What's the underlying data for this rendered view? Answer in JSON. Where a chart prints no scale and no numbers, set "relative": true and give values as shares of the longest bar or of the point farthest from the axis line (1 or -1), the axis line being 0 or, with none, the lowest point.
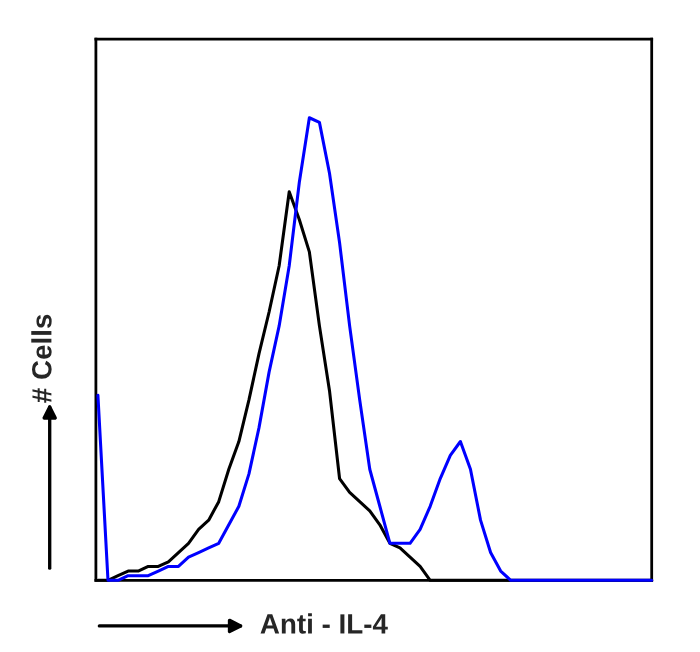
{
  "chart_data": {
    "type": "line",
    "relative": true,
    "xlabel": "Anti - IL-4",
    "ylabel": "# Cells",
    "grid": false,
    "legend": false,
    "marker": "none",
    "line_style": "solid",
    "categories": [
      null,
      null,
      null,
      null,
      null,
      null,
      null,
      null,
      null,
      null,
      null,
      null,
      null,
      null,
      null,
      null,
      null,
      null,
      null,
      null,
      null,
      null,
      null,
      null,
      null,
      null,
      null,
      null,
      null,
      null,
      null,
      null,
      null,
      null,
      null,
      null,
      null,
      null,
      null,
      null,
      null,
      null,
      null,
      null,
      null,
      null,
      null,
      null,
      null,
      null,
      null,
      null,
      null,
      null,
      null,
      null
    ],
    "series": [
      {
        "color": "#000000",
        "values": [
          0.0,
          0.0,
          0.01,
          0.02,
          0.02,
          0.03,
          0.03,
          0.04,
          0.06,
          0.08,
          0.11,
          0.13,
          0.17,
          0.24,
          0.3,
          0.39,
          0.49,
          0.58,
          0.68,
          0.84,
          0.78,
          0.71,
          0.55,
          0.41,
          0.22,
          0.19,
          0.17,
          0.15,
          0.12,
          0.08,
          0.07,
          0.05,
          0.03,
          0.0,
          0,
          0,
          0,
          0,
          0,
          0,
          0,
          0,
          0,
          0,
          0,
          0,
          0,
          0,
          0,
          0,
          0,
          0,
          0,
          0,
          0,
          0
        ]
      },
      {
        "color": "#0000ff",
        "values": [
          0.4,
          0.0,
          0.0,
          0.01,
          0.01,
          0.01,
          0.02,
          0.03,
          0.03,
          0.05,
          0.06,
          0.07,
          0.08,
          0.12,
          0.16,
          0.23,
          0.33,
          0.45,
          0.55,
          0.68,
          0.86,
          1.0,
          0.99,
          0.88,
          0.73,
          0.55,
          0.39,
          0.24,
          0.16,
          0.08,
          0.08,
          0.08,
          0.11,
          0.16,
          0.22,
          0.27,
          0.3,
          0.24,
          0.13,
          0.06,
          0.02,
          0.0,
          0,
          0,
          0,
          0,
          0,
          0,
          0,
          0,
          0,
          0,
          0,
          0,
          0,
          0
        ]
      }
    ]
  }
}
